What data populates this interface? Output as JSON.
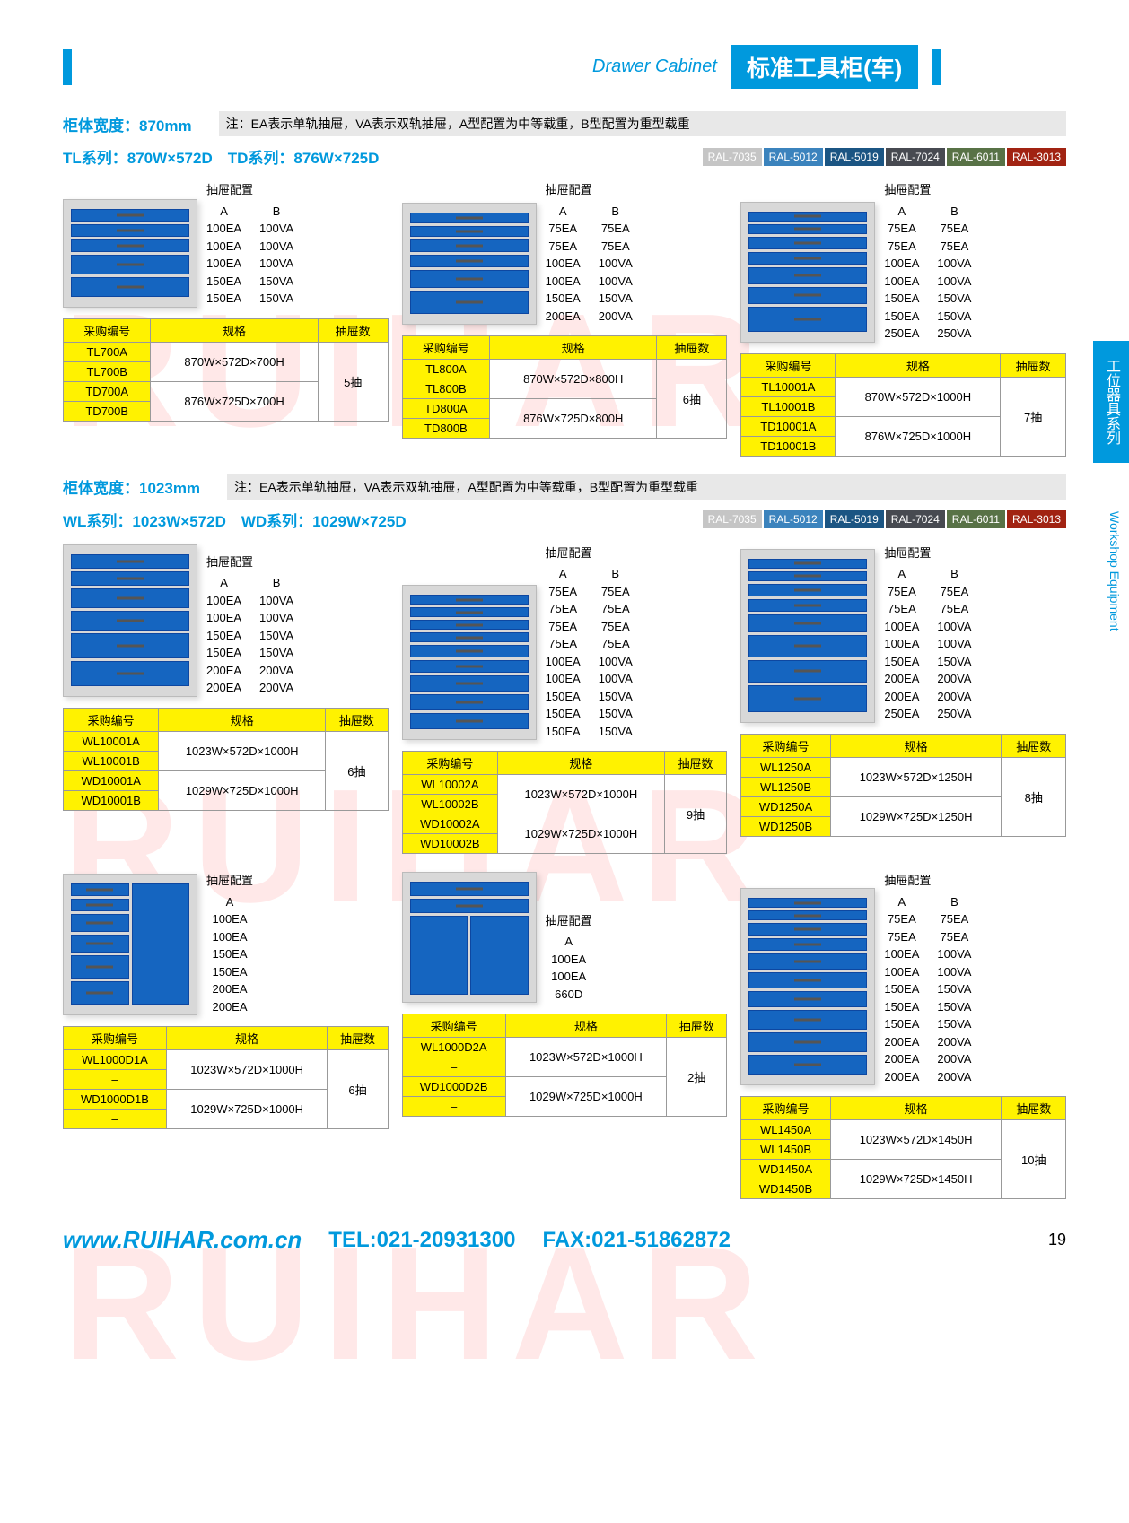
{
  "header": {
    "subtitle": "Drawer Cabinet",
    "title": "标准工具柜(车)"
  },
  "sideTab1": "工位器具系列",
  "sideTab2": "Workshop Equipment",
  "section1": {
    "widthLabel": "柜体宽度：870mm",
    "note": "注：EA表示单轨抽屉，VA表示双轨抽屉，A型配置为中等载重，B型配置为重型载重",
    "series": "TL系列：870W×572D　TD系列：876W×725D"
  },
  "section2": {
    "widthLabel": "柜体宽度：1023mm",
    "note": "注：EA表示单轨抽屉，VA表示双轨抽屉，A型配置为中等载重，B型配置为重型载重",
    "series": "WL系列：1023W×572D　WD系列：1029W×725D"
  },
  "ral": [
    {
      "label": "RAL-7035",
      "color": "#c5c5c5"
    },
    {
      "label": "RAL-5012",
      "color": "#3b83bd"
    },
    {
      "label": "RAL-5019",
      "color": "#1b5583"
    },
    {
      "label": "RAL-7024",
      "color": "#474a51"
    },
    {
      "label": "RAL-6011",
      "color": "#587246"
    },
    {
      "label": "RAL-3013",
      "color": "#a12312"
    }
  ],
  "configTitle": "抽屉配置",
  "colA": "A",
  "colB": "B",
  "tableHeaders": {
    "code": "采购编号",
    "spec": "规格",
    "drawers": "抽屉数"
  },
  "products": [
    {
      "drawerHeights": [
        14,
        14,
        14,
        22,
        22
      ],
      "configA": [
        "100EA",
        "100EA",
        "100EA",
        "150EA",
        "150EA"
      ],
      "configB": [
        "100VA",
        "100VA",
        "100VA",
        "150VA",
        "150VA"
      ],
      "codes": [
        "TL700A",
        "TL700B",
        "TD700A",
        "TD700B"
      ],
      "specs": [
        "870W×572D×700H",
        "876W×725D×700H"
      ],
      "drawerCount": "5抽"
    },
    {
      "drawerHeights": [
        12,
        12,
        14,
        14,
        20,
        26
      ],
      "configA": [
        "75EA",
        "75EA",
        "100EA",
        "100EA",
        "150EA",
        "200EA"
      ],
      "configB": [
        "75EA",
        "75EA",
        "100VA",
        "100VA",
        "150VA",
        "200VA"
      ],
      "codes": [
        "TL800A",
        "TL800B",
        "TD800A",
        "TD800B"
      ],
      "specs": [
        "870W×572D×800H",
        "876W×725D×800H"
      ],
      "drawerCount": "6抽"
    },
    {
      "drawerHeights": [
        11,
        11,
        14,
        14,
        19,
        19,
        28
      ],
      "configA": [
        "75EA",
        "75EA",
        "100EA",
        "100EA",
        "150EA",
        "150EA",
        "250EA"
      ],
      "configB": [
        "75EA",
        "75EA",
        "100VA",
        "100VA",
        "150VA",
        "150VA",
        "250VA"
      ],
      "codes": [
        "TL10001A",
        "TL10001B",
        "TD10001A",
        "TD10001B"
      ],
      "specs": [
        "870W×572D×1000H",
        "876W×725D×1000H"
      ],
      "drawerCount": "7抽"
    },
    {
      "drawerHeights": [
        16,
        16,
        22,
        22,
        28,
        28
      ],
      "configA": [
        "100EA",
        "100EA",
        "150EA",
        "150EA",
        "200EA",
        "200EA"
      ],
      "configB": [
        "100VA",
        "100VA",
        "150VA",
        "150VA",
        "200VA",
        "200VA"
      ],
      "codes": [
        "WL10001A",
        "WL10001B",
        "WD10001A",
        "WD10001B"
      ],
      "specs": [
        "1023W×572D×1000H",
        "1029W×725D×1000H"
      ],
      "drawerCount": "6抽"
    },
    {
      "drawerHeights": [
        11,
        11,
        11,
        11,
        14,
        14,
        18,
        18,
        18
      ],
      "configA": [
        "75EA",
        "75EA",
        "75EA",
        "75EA",
        "100EA",
        "100EA",
        "150EA",
        "150EA",
        "150EA"
      ],
      "configB": [
        "75EA",
        "75EA",
        "75EA",
        "75EA",
        "100VA",
        "100VA",
        "150VA",
        "150VA",
        "150VA"
      ],
      "codes": [
        "WL10002A",
        "WL10002B",
        "WD10002A",
        "WD10002B"
      ],
      "specs": [
        "1023W×572D×1000H",
        "1029W×725D×1000H"
      ],
      "drawerCount": "9抽"
    },
    {
      "drawerHeights": [
        11,
        11,
        14,
        14,
        20,
        25,
        25,
        30
      ],
      "configA": [
        "75EA",
        "75EA",
        "100EA",
        "100EA",
        "150EA",
        "200EA",
        "200EA",
        "250EA"
      ],
      "configB": [
        "75EA",
        "75EA",
        "100VA",
        "100VA",
        "150VA",
        "200VA",
        "200VA",
        "250VA"
      ],
      "codes": [
        "WL1250A",
        "WL1250B",
        "WD1250A",
        "WD1250B"
      ],
      "specs": [
        "1023W×572D×1250H",
        "1029W×725D×1250H"
      ],
      "drawerCount": "8抽"
    },
    {
      "drawerHeights": [
        14,
        14,
        20,
        20,
        26,
        26
      ],
      "configA": [
        "100EA",
        "100EA",
        "150EA",
        "150EA",
        "200EA",
        "200EA"
      ],
      "configB": [],
      "split": true,
      "codes": [
        "WL1000D1A",
        "–",
        "WD1000D1B",
        "–"
      ],
      "specs": [
        "1023W×572D×1000H",
        "1029W×725D×1000H"
      ],
      "drawerCount": "6抽"
    },
    {
      "drawerHeights": [
        16,
        16
      ],
      "door": 88,
      "configA": [
        "100EA",
        "100EA",
        "660D"
      ],
      "configB": [],
      "codes": [
        "WL1000D2A",
        "–",
        "WD1000D2B",
        "–"
      ],
      "specs": [
        "1023W×572D×1000H",
        "1029W×725D×1000H"
      ],
      "drawerCount": "2抽"
    },
    {
      "drawerHeights": [
        11,
        11,
        14,
        14,
        18,
        18,
        18,
        22,
        22,
        22
      ],
      "configA": [
        "75EA",
        "75EA",
        "100EA",
        "100EA",
        "150EA",
        "150EA",
        "150EA",
        "200EA",
        "200EA",
        "200EA"
      ],
      "configB": [
        "75EA",
        "75EA",
        "100VA",
        "100VA",
        "150VA",
        "150VA",
        "150VA",
        "200VA",
        "200VA",
        "200VA"
      ],
      "codes": [
        "WL1450A",
        "WL1450B",
        "WD1450A",
        "WD1450B"
      ],
      "specs": [
        "1023W×572D×1450H",
        "1029W×725D×1450H"
      ],
      "drawerCount": "10抽"
    }
  ],
  "footer": {
    "url": "www.RUIHAR.com.cn",
    "tel": "TEL:021-20931300",
    "fax": "FAX:021-51862872",
    "page": "19"
  },
  "watermark": "RUIHAR",
  "colors": {
    "brand": "#0099dd",
    "drawer": "#1565c0",
    "highlight": "#fff200"
  }
}
